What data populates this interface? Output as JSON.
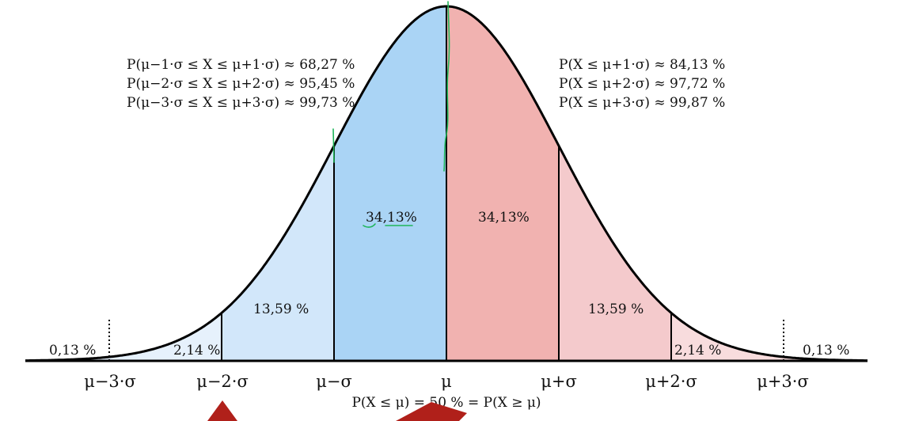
{
  "region_labels": {
    "tail_left": "0,13 %",
    "band2_left": "2,14 %",
    "band1_left": "13,59 %",
    "center_left": "34,13%",
    "center_right": "34,13%",
    "band1_right": "13,59 %",
    "band2_right": "2,14 %",
    "tail_right": "0,13 %"
  },
  "interval_probabilities": [
    "P(μ−1·σ ≤ X ≤ μ+1·σ) ≈ 68,27 %",
    "P(μ−2·σ ≤ X ≤ μ+2·σ) ≈ 95,45 %",
    "P(μ−3·σ ≤ X ≤ μ+3·σ) ≈ 99,73 %"
  ],
  "cumulative_probabilities": [
    "P(X ≤ μ+1·σ) ≈ 84,13 %",
    "P(X ≤ μ+2·σ) ≈ 97,72 %",
    "P(X ≤ μ+3·σ) ≈ 99,87 %"
  ],
  "axis_ticks": [
    "μ−3·σ",
    "μ−2·σ",
    "μ−σ",
    "μ",
    "μ+σ",
    "μ+2·σ",
    "μ+3·σ"
  ],
  "footer": "P(X ≤ μ) = 50 % = P(X ≥ μ)",
  "colors": {
    "left_center": "#aad4f5",
    "left_band1": "#d2e7fa",
    "left_band2": "#e6f1fc",
    "right_center": "#f1b2b0",
    "right_band1": "#f4cacc",
    "right_band2": "#f8dcdd",
    "curve": "#000000",
    "annotation": "#1fb55a",
    "marker": "#b0201a"
  }
}
